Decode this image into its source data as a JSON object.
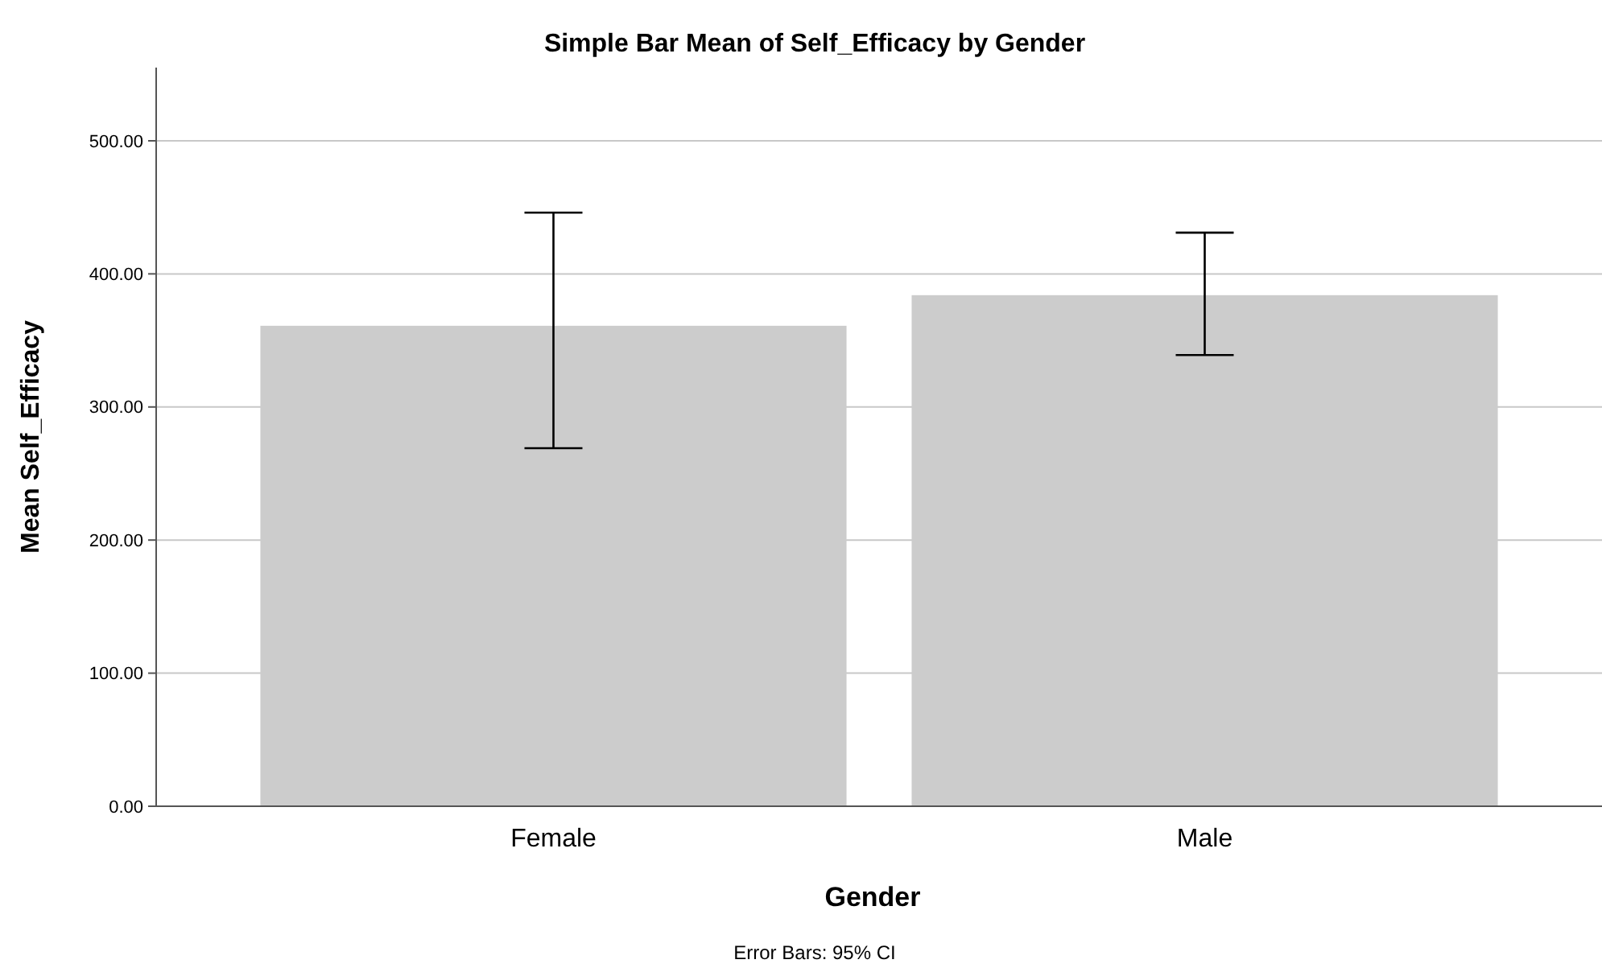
{
  "chart_data": {
    "type": "bar",
    "title": "Simple Bar Mean of Self_Efficacy by Gender",
    "xlabel": "Gender",
    "ylabel": "Mean Self_Efficacy",
    "categories": [
      "Female",
      "Male"
    ],
    "values": [
      361,
      384
    ],
    "color": "#cccccc",
    "errors": [
      [
        269,
        446
      ],
      [
        339,
        431
      ]
    ],
    "ylim": [
      0,
      555
    ],
    "yticks": [
      {
        "value": 0,
        "label": "0.00"
      },
      {
        "value": 100,
        "label": "100.00"
      },
      {
        "value": 200,
        "label": "200.00"
      },
      {
        "value": 300,
        "label": "300.00"
      },
      {
        "value": 400,
        "label": "400.00"
      },
      {
        "value": 500,
        "label": "500.00"
      }
    ],
    "grid": "y",
    "annotations": [
      "Error Bars: 95% CI"
    ]
  }
}
